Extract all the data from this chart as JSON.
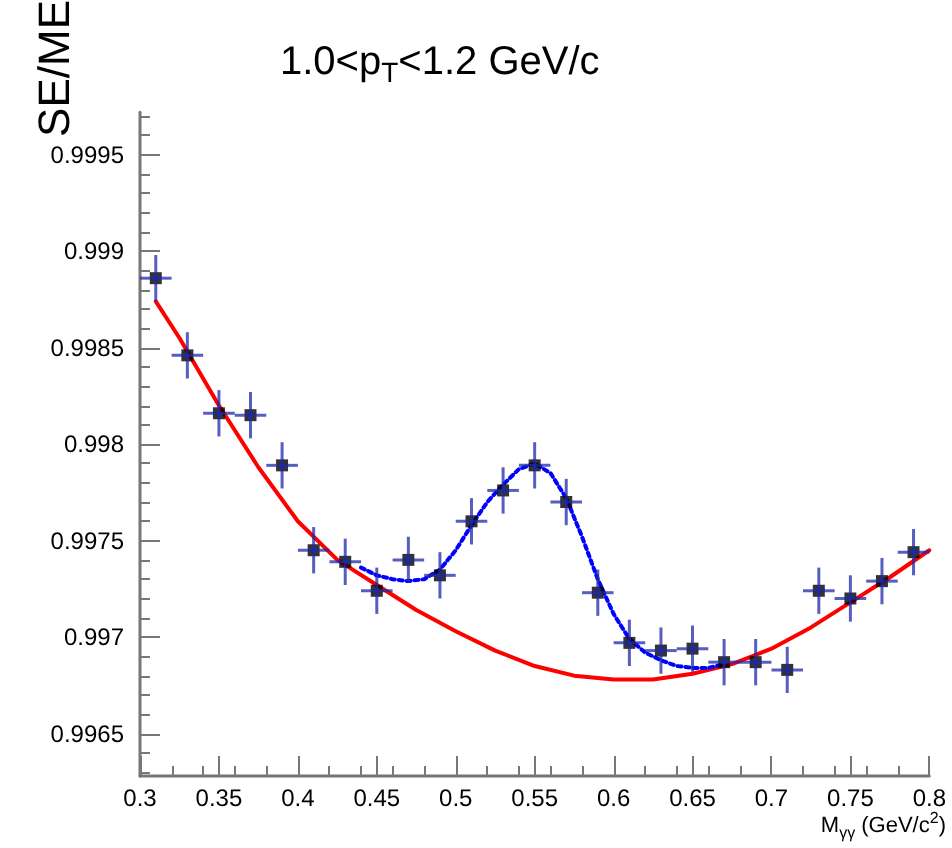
{
  "chart_data": {
    "type": "scatter",
    "title": "1.0<p$_{T}$<1.2 GeV/c",
    "xlabel": "M$_{γγ}$ (GeV/c$^{2}$)",
    "ylabel": "SE/ME",
    "xlim": [
      0.3,
      0.8
    ],
    "xticks": [
      0.3,
      0.35,
      0.4,
      0.45,
      0.5,
      0.55,
      0.6,
      0.65,
      0.7,
      0.75,
      0.8
    ],
    "ylim": [
      0.99628,
      0.99972
    ],
    "yticks": [
      0.9965,
      0.997,
      0.9975,
      0.998,
      0.9985,
      0.999,
      0.9995
    ],
    "grid": false,
    "series": [
      {
        "color": "#000000",
        "marker": "square",
        "x": [
          0.31,
          0.33,
          0.35,
          0.37,
          0.39,
          0.41,
          0.43,
          0.45,
          0.47,
          0.49,
          0.51,
          0.53,
          0.55,
          0.57,
          0.59,
          0.61,
          0.63,
          0.65,
          0.67,
          0.69,
          0.71,
          0.73,
          0.75,
          0.77,
          0.79
        ],
        "values": [
          0.99886,
          0.99846,
          0.99816,
          0.99815,
          0.99789,
          0.99745,
          0.99739,
          0.99724,
          0.9974,
          0.99732,
          0.9976,
          0.99776,
          0.99789,
          0.9977,
          0.99723,
          0.99697,
          0.99693,
          0.99694,
          0.99687,
          0.99687,
          0.99683,
          0.99724,
          0.9972,
          0.99729,
          0.99744
        ],
        "errors": [
          0.00012,
          0.00012,
          0.00012,
          0.00012,
          0.00012,
          0.00012,
          0.00012,
          0.00012,
          0.00012,
          0.00012,
          0.00012,
          0.00012,
          0.00012,
          0.00012,
          0.00012,
          0.00012,
          0.00012,
          0.00012,
          0.00012,
          0.00012,
          0.00012,
          0.00012,
          0.00012,
          0.00012,
          0.00012
        ],
        "xerrors": [
          0.01,
          0.01,
          0.01,
          0.01,
          0.01,
          0.01,
          0.01,
          0.01,
          0.01,
          0.01,
          0.01,
          0.01,
          0.01,
          0.01,
          0.01,
          0.01,
          0.01,
          0.01,
          0.01,
          0.01,
          0.01,
          0.01,
          0.01,
          0.01,
          0.01
        ]
      },
      {
        "type": "line",
        "color": "#ff0000",
        "marker": "none",
        "line_style": "solid",
        "x": [
          0.31,
          0.325,
          0.35,
          0.375,
          0.4,
          0.425,
          0.45,
          0.475,
          0.5,
          0.525,
          0.55,
          0.575,
          0.6,
          0.625,
          0.65,
          0.675,
          0.7,
          0.725,
          0.75,
          0.775,
          0.8
        ],
        "values": [
          0.99874,
          0.99855,
          0.9982,
          0.99788,
          0.9976,
          0.9974,
          0.99727,
          0.99714,
          0.99703,
          0.99693,
          0.99685,
          0.9968,
          0.99678,
          0.99678,
          0.99681,
          0.99686,
          0.99694,
          0.99705,
          0.99718,
          0.99731,
          0.99745
        ]
      },
      {
        "type": "line",
        "color": "#0000ff",
        "marker": "none",
        "line_style": "dotted",
        "x": [
          0.44,
          0.45,
          0.46,
          0.47,
          0.48,
          0.49,
          0.5,
          0.51,
          0.52,
          0.53,
          0.54,
          0.55,
          0.56,
          0.57,
          0.58,
          0.59,
          0.6,
          0.61,
          0.62,
          0.63,
          0.64,
          0.65,
          0.66,
          0.67
        ],
        "values": [
          0.99736,
          0.99732,
          0.9973,
          0.99729,
          0.9973,
          0.99735,
          0.99745,
          0.99758,
          0.9977,
          0.99779,
          0.99787,
          0.9979,
          0.99785,
          0.99772,
          0.99752,
          0.9973,
          0.99712,
          0.99699,
          0.99692,
          0.99688,
          0.99685,
          0.99684,
          0.99684,
          0.99686
        ]
      }
    ]
  }
}
